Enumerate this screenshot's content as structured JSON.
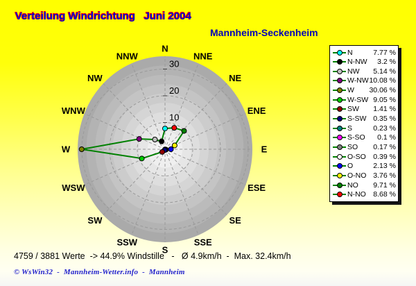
{
  "header": {
    "title": "Verteilung Windrichtung   Juni 2004",
    "subtitle": "Mannheim-Seckenheim",
    "title_color": "#0000CC",
    "title_shadow_color": "#FF0000",
    "subtitle_color": "#0000B8"
  },
  "chart_data": {
    "type": "radar",
    "variant": "wind-rose",
    "title": "Verteilung Windrichtung   Juni 2004",
    "subtitle": "Mannheim-Seckenheim",
    "unit": "%",
    "radial_ticks": [
      10,
      20,
      30
    ],
    "radial_range": [
      0,
      35
    ],
    "grid": "dashed",
    "line_color": "#008000",
    "grid_color": "#999999",
    "compass_labels": [
      "N",
      "NNE",
      "NE",
      "ENE",
      "E",
      "ESE",
      "SE",
      "SSE",
      "S",
      "SSW",
      "SW",
      "WSW",
      "W",
      "WNW",
      "NW",
      "NNW"
    ],
    "points": [
      {
        "dir": "N",
        "angle": 0,
        "value": 7.77,
        "marker_color": "#00FFFF"
      },
      {
        "dir": "N-NO",
        "angle": 22.5,
        "value": 8.68,
        "marker_color": "#FF0000"
      },
      {
        "dir": "NO",
        "angle": 45,
        "value": 9.71,
        "marker_color": "#008000"
      },
      {
        "dir": "O-NO",
        "angle": 67.5,
        "value": 3.76,
        "marker_color": "#FFFF00"
      },
      {
        "dir": "O",
        "angle": 90,
        "value": 2.13,
        "marker_color": "#0000FF"
      },
      {
        "dir": "O-SO",
        "angle": 112.5,
        "value": 0.39,
        "marker_color": "#FFFFFF"
      },
      {
        "dir": "SO",
        "angle": 135,
        "value": 0.17,
        "marker_color": "#808080"
      },
      {
        "dir": "S-SO",
        "angle": 157.5,
        "value": 0.1,
        "marker_color": "#FF00FF"
      },
      {
        "dir": "S",
        "angle": 180,
        "value": 0.23,
        "marker_color": "#008080"
      },
      {
        "dir": "S-SW",
        "angle": 202.5,
        "value": 0.35,
        "marker_color": "#000080"
      },
      {
        "dir": "SW",
        "angle": 225,
        "value": 1.41,
        "marker_color": "#900000"
      },
      {
        "dir": "W-SW",
        "angle": 247.5,
        "value": 9.05,
        "marker_color": "#00CC00"
      },
      {
        "dir": "W",
        "angle": 270,
        "value": 30.06,
        "marker_color": "#808000"
      },
      {
        "dir": "W-NW",
        "angle": 292.5,
        "value": 10.08,
        "marker_color": "#800080"
      },
      {
        "dir": "NW",
        "angle": 315,
        "value": 5.14,
        "marker_color": "#C0C0C0"
      },
      {
        "dir": "N-NW",
        "angle": 337.5,
        "value": 3.2,
        "marker_color": "#000000"
      }
    ]
  },
  "legend": {
    "items": [
      {
        "label": "N",
        "value": "7.77 %",
        "color": "#00FFFF"
      },
      {
        "label": "N-NW",
        "value": "3.2 %",
        "color": "#000000"
      },
      {
        "label": "NW",
        "value": "5.14 %",
        "color": "#C0C0C0"
      },
      {
        "label": "W-NW",
        "value": "10.08 %",
        "color": "#800080"
      },
      {
        "label": "W",
        "value": "30.06 %",
        "color": "#808000"
      },
      {
        "label": "W-SW",
        "value": "9.05 %",
        "color": "#00CC00"
      },
      {
        "label": "SW",
        "value": "1.41 %",
        "color": "#900000"
      },
      {
        "label": "S-SW",
        "value": "0.35 %",
        "color": "#000080"
      },
      {
        "label": "S",
        "value": "0.23 %",
        "color": "#008080"
      },
      {
        "label": "S-SO",
        "value": "0.1 %",
        "color": "#FF00FF"
      },
      {
        "label": "SO",
        "value": "0.17 %",
        "color": "#808080"
      },
      {
        "label": "O-SO",
        "value": "0.39 %",
        "color": "#FFFFFF"
      },
      {
        "label": "O",
        "value": "2.13 %",
        "color": "#0000FF"
      },
      {
        "label": "O-NO",
        "value": "3.76 %",
        "color": "#FFFF00"
      },
      {
        "label": "NO",
        "value": "9.71 %",
        "color": "#008000"
      },
      {
        "label": "N-NO",
        "value": "8.68 %",
        "color": "#FF0000"
      }
    ]
  },
  "footer": {
    "stats": "4759 / 3881 Werte  -> 44.9% Windstille   -   Ø 4.9km/h  -  Max. 32.4km/h",
    "credit": "© WsWin32  -  Mannheim-Wetter.info  -  Mannheim"
  }
}
